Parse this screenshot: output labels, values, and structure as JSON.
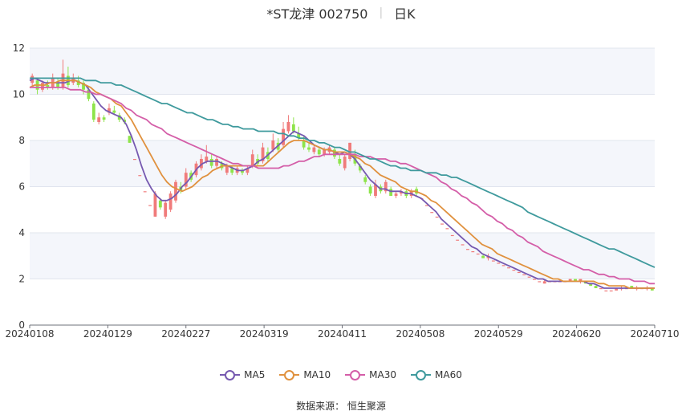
{
  "header": {
    "stock": "*ST龙津 002750",
    "period": "日K"
  },
  "source": {
    "label": "数据来源：",
    "name": "恒生聚源"
  },
  "colors": {
    "up": "#f07b7b",
    "down": "#8ee44a",
    "MA5": "#7659b0",
    "MA10": "#e0913e",
    "MA30": "#d45ea8",
    "MA60": "#3f9a9d",
    "grid": "#e1e5ee",
    "band": "#f4f6fb"
  },
  "chart_data": {
    "type": "candlestick",
    "x_labels": [
      "20240108",
      "20240129",
      "20240227",
      "20240319",
      "20240411",
      "20240508",
      "20240529",
      "20240620",
      "20240710"
    ],
    "y_ticks": [
      0,
      2,
      4,
      6,
      8,
      10,
      12
    ],
    "ylim": [
      0,
      12
    ],
    "grid": true,
    "legend_position": "bottom",
    "candles": [
      [
        10.5,
        10.8,
        10.3,
        10.9
      ],
      [
        10.6,
        10.2,
        10.0,
        10.7
      ],
      [
        10.2,
        10.5,
        10.1,
        10.6
      ],
      [
        10.4,
        10.3,
        10.2,
        10.6
      ],
      [
        10.3,
        10.7,
        10.2,
        10.9
      ],
      [
        10.5,
        10.3,
        10.2,
        10.7
      ],
      [
        10.3,
        10.9,
        10.2,
        11.5
      ],
      [
        10.8,
        10.4,
        10.3,
        11.2
      ],
      [
        10.5,
        10.7,
        10.4,
        10.9
      ],
      [
        10.6,
        10.4,
        10.3,
        10.8
      ],
      [
        10.5,
        10.2,
        10.0,
        10.6
      ],
      [
        10.2,
        9.8,
        9.7,
        10.3
      ],
      [
        9.6,
        8.9,
        8.8,
        9.7
      ],
      [
        8.8,
        9.0,
        8.7,
        9.2
      ],
      [
        9.0,
        8.9,
        8.8,
        9.1
      ],
      [
        9.2,
        9.4,
        9.1,
        9.6
      ],
      [
        9.3,
        9.2,
        9.1,
        9.5
      ],
      [
        9.1,
        8.9,
        8.8,
        9.2
      ],
      [
        8.9,
        8.8,
        8.7,
        9.0
      ],
      [
        8.2,
        7.9,
        7.9,
        8.2
      ],
      [
        7.2,
        7.2,
        7.2,
        7.2
      ],
      [
        6.5,
        6.5,
        6.5,
        6.5
      ],
      [
        5.8,
        5.8,
        5.8,
        5.8
      ],
      [
        5.2,
        5.2,
        5.2,
        5.2
      ],
      [
        4.7,
        5.7,
        4.7,
        5.8
      ],
      [
        5.4,
        5.1,
        5.0,
        5.5
      ],
      [
        4.7,
        5.3,
        4.6,
        5.4
      ],
      [
        5.0,
        5.7,
        4.9,
        5.8
      ],
      [
        5.4,
        6.2,
        5.3,
        6.3
      ],
      [
        6.0,
        5.8,
        5.7,
        6.2
      ],
      [
        6.0,
        6.6,
        5.9,
        6.8
      ],
      [
        6.6,
        6.3,
        6.2,
        6.7
      ],
      [
        6.5,
        7.0,
        6.4,
        7.1
      ],
      [
        6.8,
        7.2,
        6.7,
        7.4
      ],
      [
        7.1,
        7.3,
        7.0,
        7.8
      ],
      [
        7.2,
        6.9,
        6.8,
        7.4
      ],
      [
        6.9,
        7.2,
        6.8,
        7.3
      ],
      [
        7.0,
        6.8,
        6.7,
        7.1
      ],
      [
        6.6,
        6.9,
        6.5,
        7.0
      ],
      [
        6.8,
        6.6,
        6.5,
        6.9
      ],
      [
        6.6,
        6.8,
        6.5,
        6.9
      ],
      [
        6.7,
        6.6,
        6.5,
        6.8
      ],
      [
        6.6,
        6.8,
        6.5,
        6.9
      ],
      [
        6.9,
        7.4,
        6.8,
        7.6
      ],
      [
        7.2,
        7.0,
        6.9,
        7.4
      ],
      [
        7.1,
        7.7,
        7.0,
        7.9
      ],
      [
        7.5,
        7.2,
        7.1,
        7.7
      ],
      [
        7.6,
        8.0,
        7.5,
        8.3
      ],
      [
        7.9,
        7.6,
        7.5,
        8.1
      ],
      [
        7.8,
        8.5,
        7.7,
        8.8
      ],
      [
        8.4,
        8.8,
        8.3,
        9.1
      ],
      [
        8.7,
        8.4,
        8.3,
        9.0
      ],
      [
        8.3,
        8.1,
        8.0,
        8.6
      ],
      [
        8.0,
        7.7,
        7.6,
        8.2
      ],
      [
        7.7,
        7.6,
        7.5,
        7.9
      ],
      [
        7.5,
        7.7,
        7.4,
        7.8
      ],
      [
        7.6,
        7.4,
        7.3,
        7.7
      ],
      [
        7.4,
        7.6,
        7.3,
        7.7
      ],
      [
        7.5,
        7.7,
        7.4,
        7.8
      ],
      [
        7.6,
        7.3,
        7.2,
        7.7
      ],
      [
        7.2,
        7.0,
        6.9,
        7.4
      ],
      [
        6.8,
        7.3,
        6.7,
        7.4
      ],
      [
        7.2,
        7.9,
        7.1,
        7.9
      ],
      [
        7.4,
        7.0,
        6.9,
        7.6
      ],
      [
        6.9,
        6.7,
        6.6,
        7.0
      ],
      [
        6.4,
        6.2,
        6.1,
        6.5
      ],
      [
        6.0,
        5.7,
        5.6,
        6.1
      ],
      [
        5.6,
        6.1,
        5.5,
        6.3
      ],
      [
        6.0,
        5.8,
        5.7,
        6.1
      ],
      [
        5.8,
        6.2,
        5.7,
        6.3
      ],
      [
        5.9,
        5.6,
        5.6,
        6.0
      ],
      [
        5.6,
        5.7,
        5.5,
        5.8
      ],
      [
        5.7,
        5.8,
        5.6,
        5.9
      ],
      [
        5.8,
        5.6,
        5.5,
        5.9
      ],
      [
        5.6,
        5.8,
        5.5,
        5.9
      ],
      [
        5.9,
        5.7,
        5.6,
        6.0
      ],
      [
        5.5,
        5.5,
        5.5,
        5.5
      ],
      [
        5.2,
        5.2,
        5.2,
        5.2
      ],
      [
        4.9,
        4.9,
        4.9,
        4.9
      ],
      [
        4.7,
        4.7,
        4.7,
        4.7
      ],
      [
        4.4,
        4.4,
        4.4,
        4.4
      ],
      [
        4.2,
        4.2,
        4.2,
        4.2
      ],
      [
        3.9,
        3.9,
        3.9,
        3.9
      ],
      [
        3.7,
        3.7,
        3.7,
        3.7
      ],
      [
        3.5,
        3.5,
        3.5,
        3.5
      ],
      [
        3.3,
        3.3,
        3.3,
        3.3
      ],
      [
        3.2,
        3.2,
        3.2,
        3.2
      ],
      [
        3.1,
        3.1,
        3.1,
        3.1
      ],
      [
        3.0,
        2.9,
        2.9,
        3.1
      ],
      [
        2.9,
        3.0,
        2.8,
        3.1
      ],
      [
        2.8,
        2.8,
        2.8,
        2.8
      ],
      [
        2.7,
        2.7,
        2.7,
        2.7
      ],
      [
        2.6,
        2.6,
        2.6,
        2.6
      ],
      [
        2.5,
        2.5,
        2.5,
        2.5
      ],
      [
        2.4,
        2.4,
        2.4,
        2.4
      ],
      [
        2.3,
        2.3,
        2.3,
        2.3
      ],
      [
        2.2,
        2.2,
        2.2,
        2.2
      ],
      [
        2.1,
        2.1,
        2.1,
        2.1
      ],
      [
        2.0,
        2.0,
        2.0,
        2.0
      ],
      [
        1.9,
        1.9,
        1.9,
        1.9
      ],
      [
        1.8,
        1.9,
        1.8,
        2.0
      ],
      [
        1.9,
        1.9,
        1.9,
        1.9
      ],
      [
        1.9,
        1.9,
        1.9,
        1.9
      ],
      [
        1.9,
        1.9,
        1.9,
        1.9
      ],
      [
        1.9,
        1.9,
        1.9,
        1.9
      ],
      [
        1.9,
        2.0,
        1.9,
        2.0
      ],
      [
        2.0,
        1.9,
        1.9,
        2.0
      ],
      [
        1.9,
        2.0,
        1.8,
        2.0
      ],
      [
        1.9,
        1.8,
        1.8,
        1.9
      ],
      [
        1.8,
        1.7,
        1.7,
        1.8
      ],
      [
        1.7,
        1.6,
        1.6,
        1.7
      ],
      [
        1.6,
        1.6,
        1.6,
        1.6
      ],
      [
        1.5,
        1.5,
        1.5,
        1.5
      ],
      [
        1.5,
        1.5,
        1.5,
        1.5
      ],
      [
        1.5,
        1.6,
        1.5,
        1.6
      ],
      [
        1.6,
        1.6,
        1.5,
        1.7
      ],
      [
        1.6,
        1.6,
        1.6,
        1.6
      ],
      [
        1.7,
        1.6,
        1.6,
        1.7
      ],
      [
        1.6,
        1.6,
        1.5,
        1.7
      ],
      [
        1.6,
        1.6,
        1.6,
        1.6
      ],
      [
        1.6,
        1.6,
        1.5,
        1.7
      ],
      [
        1.6,
        1.5,
        1.5,
        1.6
      ]
    ],
    "series": [
      {
        "name": "MA5",
        "values": [
          10.6,
          10.7,
          10.6,
          10.5,
          10.5,
          10.5,
          10.5,
          10.5,
          10.6,
          10.6,
          10.5,
          10.4,
          10.1,
          9.8,
          9.5,
          9.3,
          9.2,
          9.1,
          9.0,
          8.7,
          8.2,
          7.6,
          6.9,
          6.3,
          5.9,
          5.6,
          5.4,
          5.4,
          5.5,
          5.7,
          6.0,
          6.2,
          6.5,
          6.8,
          7.0,
          7.1,
          7.1,
          7.1,
          7.0,
          6.9,
          6.8,
          6.7,
          6.7,
          6.8,
          6.9,
          7.1,
          7.2,
          7.4,
          7.6,
          7.8,
          8.0,
          8.2,
          8.4,
          8.3,
          8.2,
          8.0,
          7.8,
          7.7,
          7.6,
          7.6,
          7.5,
          7.4,
          7.5,
          7.4,
          7.2,
          6.9,
          6.6,
          6.3,
          6.1,
          5.9,
          5.9,
          5.8,
          5.8,
          5.8,
          5.7,
          5.7,
          5.6,
          5.5,
          5.3,
          5.1,
          4.9,
          4.6,
          4.4,
          4.2,
          4.0,
          3.8,
          3.6,
          3.4,
          3.3,
          3.1,
          3.0,
          2.9,
          2.8,
          2.7,
          2.6,
          2.5,
          2.4,
          2.3,
          2.2,
          2.1,
          2.0,
          2.0,
          1.9,
          1.9,
          1.9,
          1.9,
          1.9,
          1.9,
          1.9,
          1.9,
          1.8,
          1.8,
          1.7,
          1.6,
          1.6,
          1.6,
          1.6,
          1.6,
          1.6,
          1.6,
          1.6,
          1.6,
          1.6,
          1.6
        ]
      },
      {
        "name": "MA10",
        "values": [
          10.3,
          10.4,
          10.4,
          10.4,
          10.5,
          10.5,
          10.6,
          10.6,
          10.6,
          10.6,
          10.5,
          10.4,
          10.3,
          10.1,
          10.0,
          9.9,
          9.8,
          9.6,
          9.5,
          9.2,
          8.9,
          8.5,
          8.1,
          7.7,
          7.3,
          6.9,
          6.5,
          6.2,
          6.0,
          5.9,
          5.8,
          5.9,
          6.0,
          6.2,
          6.4,
          6.5,
          6.7,
          6.8,
          6.9,
          6.9,
          6.9,
          6.9,
          6.9,
          6.9,
          6.9,
          6.9,
          6.9,
          7.1,
          7.3,
          7.5,
          7.7,
          7.9,
          8.0,
          8.0,
          8.0,
          7.9,
          7.8,
          7.7,
          7.6,
          7.6,
          7.5,
          7.5,
          7.5,
          7.4,
          7.3,
          7.2,
          7.0,
          6.9,
          6.7,
          6.5,
          6.4,
          6.3,
          6.2,
          6.0,
          5.9,
          5.8,
          5.8,
          5.7,
          5.6,
          5.4,
          5.3,
          5.1,
          4.9,
          4.7,
          4.5,
          4.3,
          4.1,
          3.9,
          3.7,
          3.5,
          3.4,
          3.3,
          3.1,
          3.0,
          2.9,
          2.8,
          2.7,
          2.6,
          2.5,
          2.4,
          2.3,
          2.2,
          2.1,
          2.0,
          2.0,
          1.9,
          1.9,
          1.9,
          1.9,
          1.9,
          1.9,
          1.9,
          1.8,
          1.8,
          1.7,
          1.7,
          1.7,
          1.7,
          1.6,
          1.6,
          1.6,
          1.6,
          1.6,
          1.6
        ]
      },
      {
        "name": "MA30",
        "values": [
          10.3,
          10.3,
          10.3,
          10.3,
          10.3,
          10.3,
          10.3,
          10.3,
          10.2,
          10.2,
          10.2,
          10.1,
          10.1,
          10.0,
          10.0,
          9.9,
          9.8,
          9.7,
          9.6,
          9.4,
          9.3,
          9.1,
          9.0,
          8.9,
          8.7,
          8.6,
          8.5,
          8.3,
          8.2,
          8.1,
          8.0,
          7.9,
          7.8,
          7.7,
          7.6,
          7.5,
          7.4,
          7.3,
          7.2,
          7.1,
          7.0,
          7.0,
          6.9,
          6.9,
          6.9,
          6.8,
          6.8,
          6.8,
          6.8,
          6.8,
          6.9,
          6.9,
          7.0,
          7.1,
          7.1,
          7.2,
          7.3,
          7.3,
          7.4,
          7.4,
          7.4,
          7.4,
          7.4,
          7.4,
          7.4,
          7.3,
          7.3,
          7.3,
          7.2,
          7.2,
          7.2,
          7.1,
          7.1,
          7.0,
          7.0,
          6.9,
          6.8,
          6.7,
          6.6,
          6.5,
          6.4,
          6.2,
          6.1,
          5.9,
          5.8,
          5.6,
          5.5,
          5.3,
          5.2,
          5.0,
          4.8,
          4.7,
          4.5,
          4.4,
          4.2,
          4.1,
          3.9,
          3.8,
          3.6,
          3.5,
          3.4,
          3.2,
          3.1,
          3.0,
          2.9,
          2.8,
          2.7,
          2.6,
          2.5,
          2.4,
          2.4,
          2.3,
          2.2,
          2.2,
          2.1,
          2.1,
          2.0,
          2.0,
          2.0,
          1.9,
          1.9,
          1.9,
          1.8,
          1.8
        ]
      },
      {
        "name": "MA60",
        "values": [
          10.7,
          10.7,
          10.7,
          10.7,
          10.7,
          10.7,
          10.7,
          10.7,
          10.7,
          10.7,
          10.7,
          10.6,
          10.6,
          10.6,
          10.5,
          10.5,
          10.5,
          10.4,
          10.4,
          10.3,
          10.2,
          10.1,
          10.0,
          9.9,
          9.8,
          9.7,
          9.6,
          9.6,
          9.5,
          9.4,
          9.3,
          9.2,
          9.2,
          9.1,
          9.0,
          8.9,
          8.9,
          8.8,
          8.7,
          8.7,
          8.6,
          8.6,
          8.5,
          8.5,
          8.5,
          8.4,
          8.4,
          8.4,
          8.4,
          8.3,
          8.3,
          8.2,
          8.2,
          8.1,
          8.1,
          8.0,
          8.0,
          7.9,
          7.9,
          7.8,
          7.7,
          7.7,
          7.6,
          7.5,
          7.5,
          7.4,
          7.3,
          7.2,
          7.2,
          7.1,
          7.0,
          6.9,
          6.9,
          6.8,
          6.8,
          6.7,
          6.7,
          6.7,
          6.6,
          6.6,
          6.6,
          6.5,
          6.5,
          6.4,
          6.4,
          6.3,
          6.2,
          6.1,
          6.0,
          5.9,
          5.8,
          5.7,
          5.6,
          5.5,
          5.4,
          5.3,
          5.2,
          5.1,
          4.9,
          4.8,
          4.7,
          4.6,
          4.5,
          4.4,
          4.3,
          4.2,
          4.1,
          4.0,
          3.9,
          3.8,
          3.7,
          3.6,
          3.5,
          3.4,
          3.3,
          3.3,
          3.2,
          3.1,
          3.0,
          2.9,
          2.8,
          2.7,
          2.6,
          2.5
        ]
      }
    ]
  }
}
